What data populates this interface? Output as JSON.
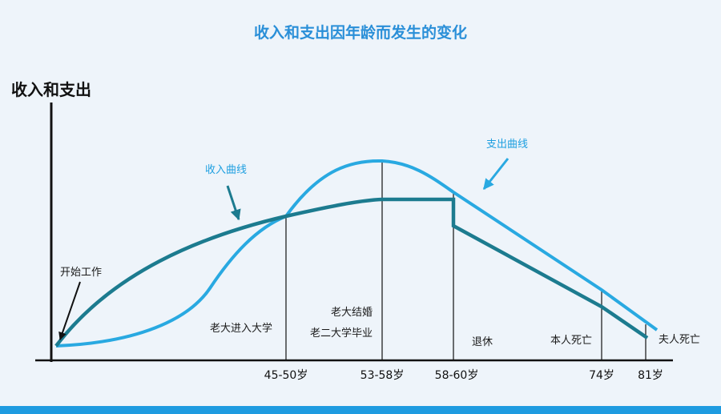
{
  "colors": {
    "background": "#eef4fa",
    "income": "#1c7b8f",
    "expense": "#29a9e1",
    "axis": "#111111",
    "title": "#2a8fd8",
    "bottom_bar": "#1e9be0"
  },
  "chart_data": {
    "type": "line",
    "title": "收入和支出因年龄而发生的变化",
    "ylabel": "收入和支出",
    "xlabel": "",
    "x_ticks": [
      "45-50岁",
      "53-58岁",
      "58-60岁",
      "74岁",
      "81岁"
    ],
    "series": [
      {
        "name": "收入曲线",
        "color": "#1c7b8f",
        "points": [
          {
            "x": "开始工作",
            "y": 0
          },
          {
            "x": "45-50岁",
            "y": 0.52
          },
          {
            "x": "53-58岁",
            "y": 0.6
          },
          {
            "x": "58-60岁",
            "y": 0.61
          },
          {
            "x": "58-60岁",
            "y": 0.52
          },
          {
            "x": "74岁",
            "y": 0.2
          },
          {
            "x": "81岁",
            "y": 0.04
          }
        ]
      },
      {
        "name": "支出曲线",
        "color": "#29a9e1",
        "points": [
          {
            "x": "开始工作",
            "y": 0
          },
          {
            "x": "45-50岁",
            "y": 0.52
          },
          {
            "x": "53-58岁",
            "y": 0.74
          },
          {
            "x": "58-60岁",
            "y": 0.65
          },
          {
            "x": "74岁",
            "y": 0.27
          },
          {
            "x": "81岁",
            "y": 0.05
          }
        ]
      }
    ],
    "annotations": [
      {
        "text": "开始工作"
      },
      {
        "text": "老大进入大学"
      },
      {
        "text": "老大结婚"
      },
      {
        "text": "老二大学毕业"
      },
      {
        "text": "退休"
      },
      {
        "text": "本人死亡"
      },
      {
        "text": "夫人死亡"
      }
    ]
  }
}
